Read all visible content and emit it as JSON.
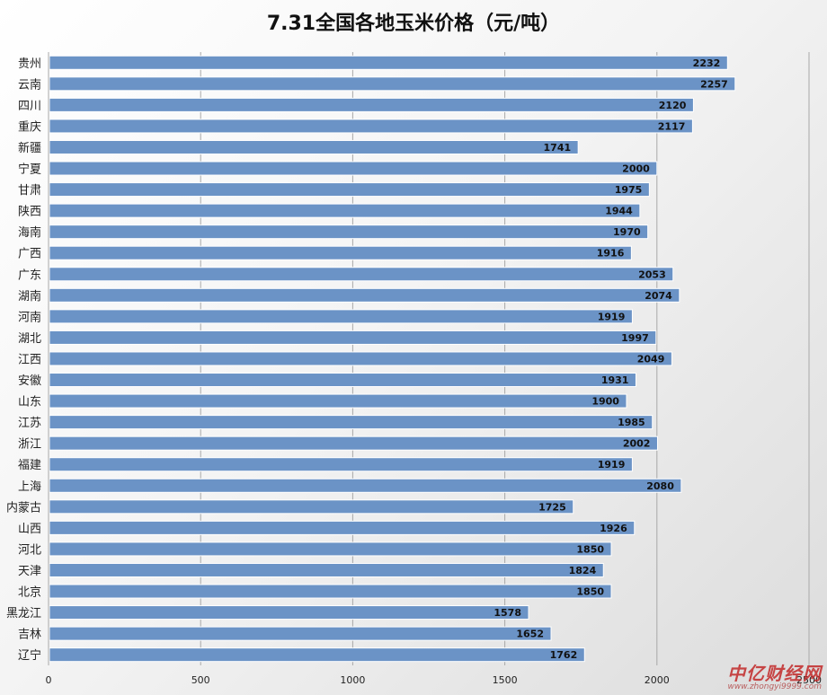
{
  "chart_data": {
    "type": "bar",
    "orientation": "horizontal",
    "title": "7.31全国各地玉米价格（元/吨）",
    "categories": [
      "贵州",
      "云南",
      "四川",
      "重庆",
      "新疆",
      "宁夏",
      "甘肃",
      "陕西",
      "海南",
      "广西",
      "广东",
      "湖南",
      "河南",
      "湖北",
      "江西",
      "安徽",
      "山东",
      "江苏",
      "浙江",
      "福建",
      "上海",
      "内蒙古",
      "山西",
      "河北",
      "天津",
      "北京",
      "黑龙江",
      "吉林",
      "辽宁"
    ],
    "values": [
      2232,
      2257,
      2120,
      2117,
      1741,
      2000,
      1975,
      1944,
      1970,
      1916,
      2053,
      2074,
      1919,
      1997,
      2049,
      1931,
      1900,
      1985,
      2002,
      1919,
      2080,
      1725,
      1926,
      1850,
      1824,
      1850,
      1578,
      1652,
      1762
    ],
    "xlim": [
      0,
      2500
    ],
    "xticks": [
      0,
      500,
      1000,
      1500,
      2000,
      2500
    ],
    "grid": true,
    "bar_color": "#6b93c6",
    "data_labels": "inside-end"
  },
  "watermark": {
    "main": "中亿财经网",
    "url": "www.zhongyi9999.com"
  }
}
